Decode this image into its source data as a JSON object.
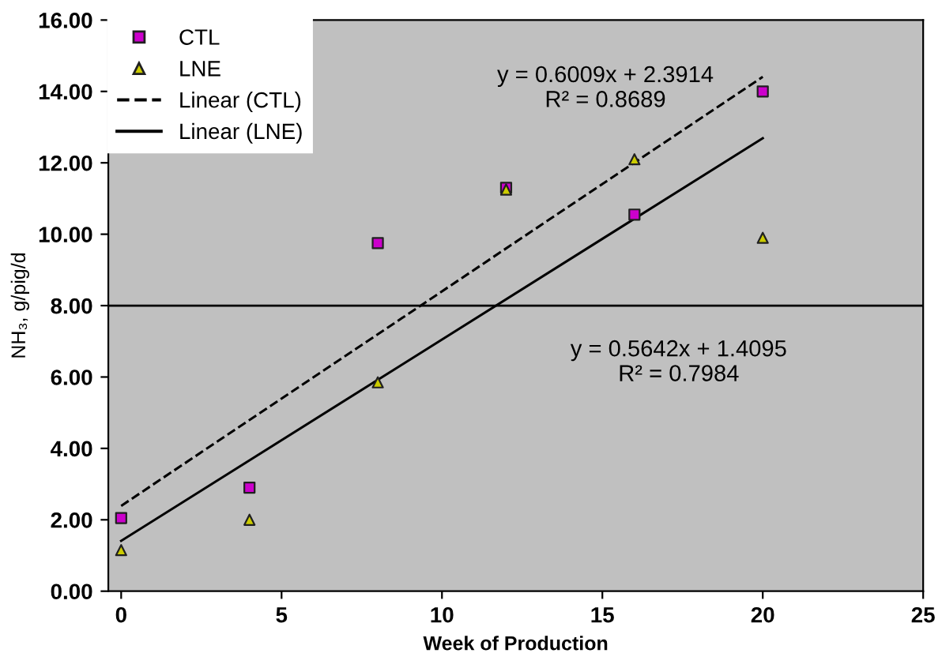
{
  "chart_data": {
    "type": "scatter",
    "xlabel": "Week of Production",
    "ylabel": "NH₃, g/pig/d",
    "xlim": [
      -0.4,
      25
    ],
    "xticks": [
      0,
      5,
      10,
      15,
      20,
      25
    ],
    "ylim": [
      0,
      16
    ],
    "yticks": [
      {
        "value": 0,
        "label": "0.00"
      },
      {
        "value": 2,
        "label": "2.00"
      },
      {
        "value": 4,
        "label": "4.00"
      },
      {
        "value": 6,
        "label": "6.00"
      },
      {
        "value": 8,
        "label": "8.00"
      },
      {
        "value": 10,
        "label": "10.00"
      },
      {
        "value": 12,
        "label": "12.00"
      },
      {
        "value": 14,
        "label": "14.00"
      },
      {
        "value": 16,
        "label": "16.00"
      }
    ],
    "grid": false,
    "legend": "top left",
    "series": [
      {
        "name": "CTL",
        "marker": "square",
        "color": "#cc00cc",
        "x": [
          0,
          4,
          8,
          12,
          16,
          20
        ],
        "values": [
          2.05,
          2.9,
          9.75,
          11.3,
          10.55,
          14.0
        ]
      },
      {
        "name": "LNE",
        "marker": "triangle",
        "color": "#cccc00",
        "x": [
          0,
          4,
          8,
          12,
          16,
          20
        ],
        "values": [
          1.15,
          2.0,
          5.85,
          11.25,
          12.1,
          9.9
        ]
      },
      {
        "name": "Linear (CTL)",
        "type": "line",
        "line_style": "dashed",
        "marker": "none",
        "color": "#000000",
        "x": [
          0,
          20
        ],
        "values": [
          2.39,
          14.41
        ]
      },
      {
        "name": "Linear (LNE)",
        "type": "line",
        "line_style": "solid",
        "marker": "none",
        "color": "#000000",
        "x": [
          0,
          20
        ],
        "values": [
          1.41,
          12.69
        ]
      }
    ],
    "ref_lines": [
      {
        "axis": "y",
        "value": 8,
        "color": "#000000",
        "line_style": "solid"
      }
    ],
    "annotations": [
      "y = 0.6009x + 2.3914\nR² = 0.8689",
      "y = 0.5642x + 1.4095\nR² = 0.7984"
    ]
  }
}
